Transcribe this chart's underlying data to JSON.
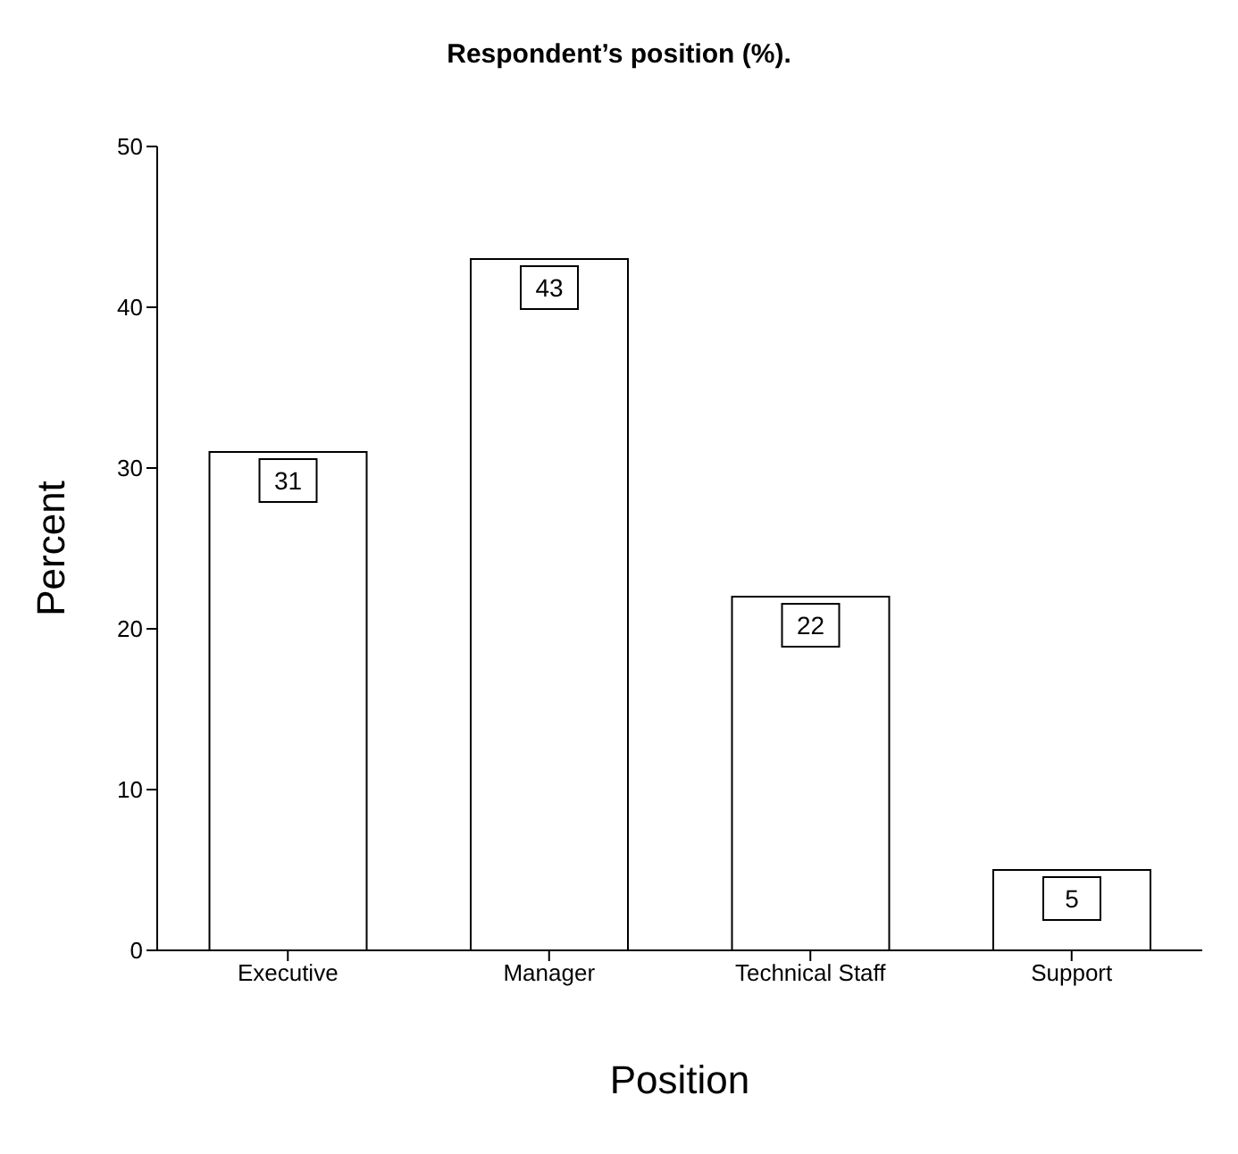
{
  "chart_data": {
    "type": "bar",
    "title": "Respondent’s position (%).",
    "xlabel": "Position",
    "ylabel": "Percent",
    "categories": [
      "Executive",
      "Manager",
      "Technical Staff",
      "Support"
    ],
    "values": [
      31,
      43,
      22,
      5
    ],
    "color": "#ffffff",
    "ylim": [
      0,
      50
    ],
    "yticks": [
      0,
      10,
      20,
      30,
      40,
      50
    ],
    "data_labels": true,
    "grid": false,
    "legend": false
  }
}
